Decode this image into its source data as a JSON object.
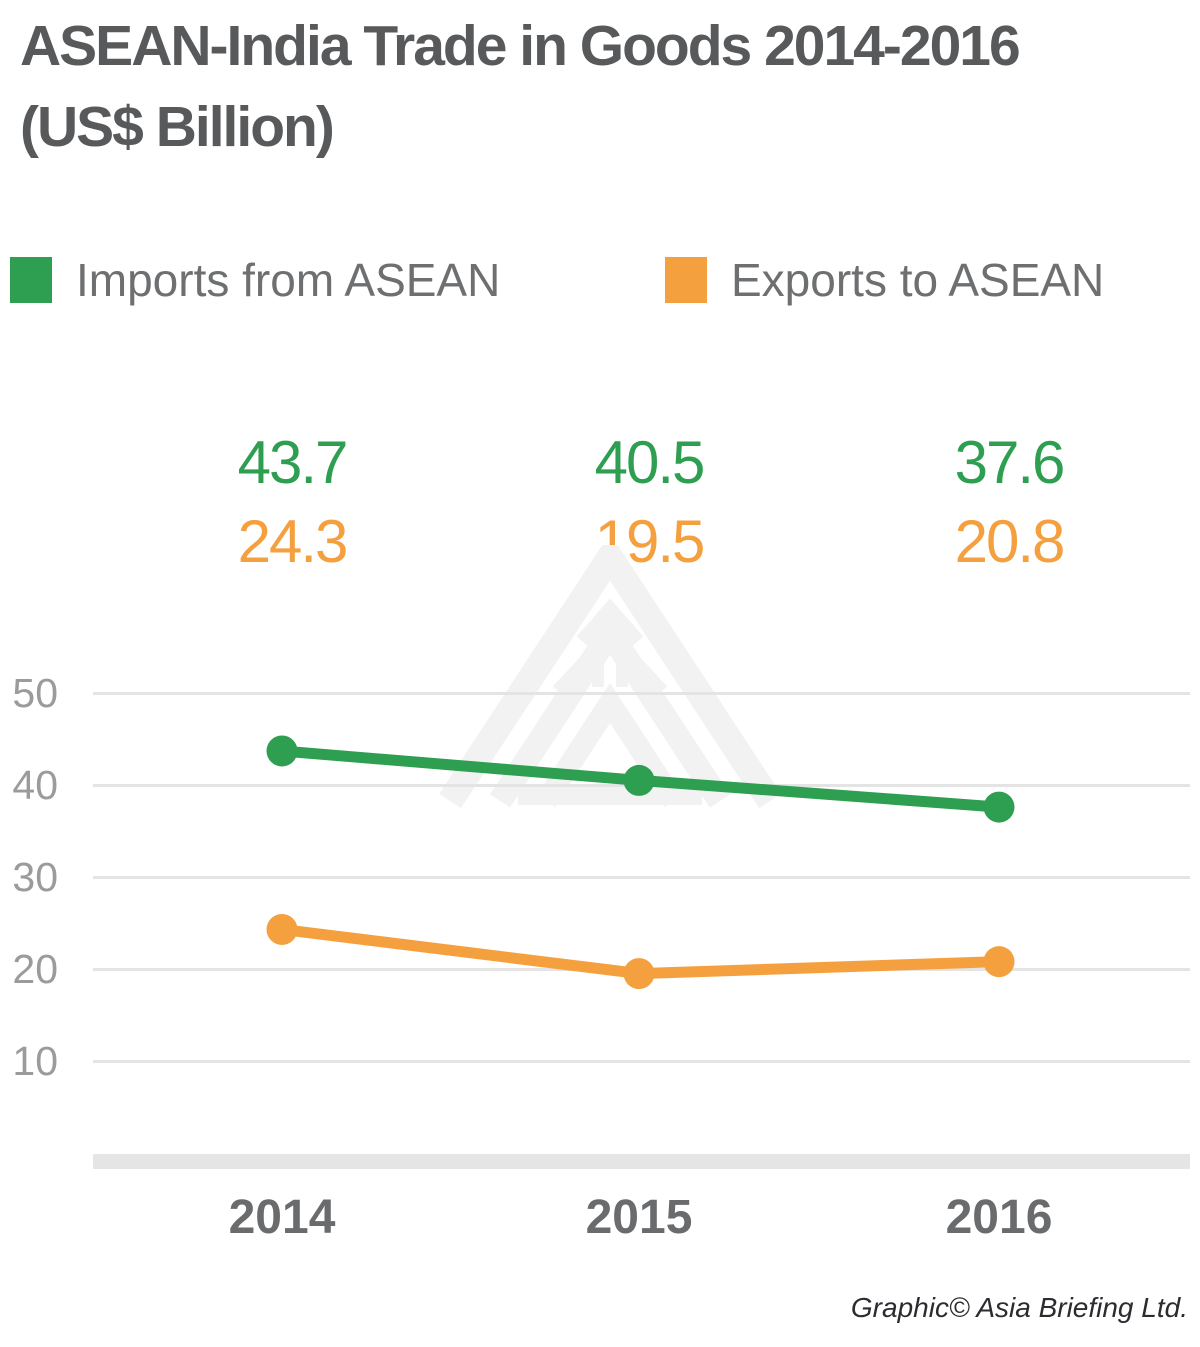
{
  "title": {
    "line1": "ASEAN-India Trade in Goods 2014-2016",
    "line2": "(US$ Billion)"
  },
  "legend": [
    {
      "label": "Imports from ASEAN",
      "color": "#2E9E50"
    },
    {
      "label": "Exports to ASEAN",
      "color": "#F5A03F"
    }
  ],
  "watermark_icon": "asia-briefing-logo-watermark",
  "footer": "Graphic© Asia Briefing Ltd.",
  "colors": {
    "title_text": "#58595B",
    "legend_text": "#6E6F71",
    "tick_text": "#9B9B9B",
    "year_text": "#6A6B6D",
    "gridline": "#E4E4E4",
    "axis_bar": "#E5E5E5",
    "watermark": "#F2F2F2",
    "imports_green": "#2E9E50",
    "exports_orange": "#F5A03F"
  },
  "chart_data": {
    "type": "line",
    "title": "ASEAN-India Trade in Goods 2014-2016 (US$ Billion)",
    "categories": [
      "2014",
      "2015",
      "2016"
    ],
    "series": [
      {
        "name": "Imports from ASEAN",
        "color": "#2E9E50",
        "values": [
          43.7,
          40.5,
          37.6
        ]
      },
      {
        "name": "Exports to ASEAN",
        "color": "#F5A03F",
        "values": [
          24.3,
          19.5,
          20.8
        ]
      }
    ],
    "yticks": [
      50,
      40,
      30,
      20,
      10
    ],
    "ylim": [
      0,
      55
    ],
    "xlabel": "",
    "ylabel": "",
    "grid": "horizontal",
    "legend_position": "top",
    "data_labels": true
  }
}
